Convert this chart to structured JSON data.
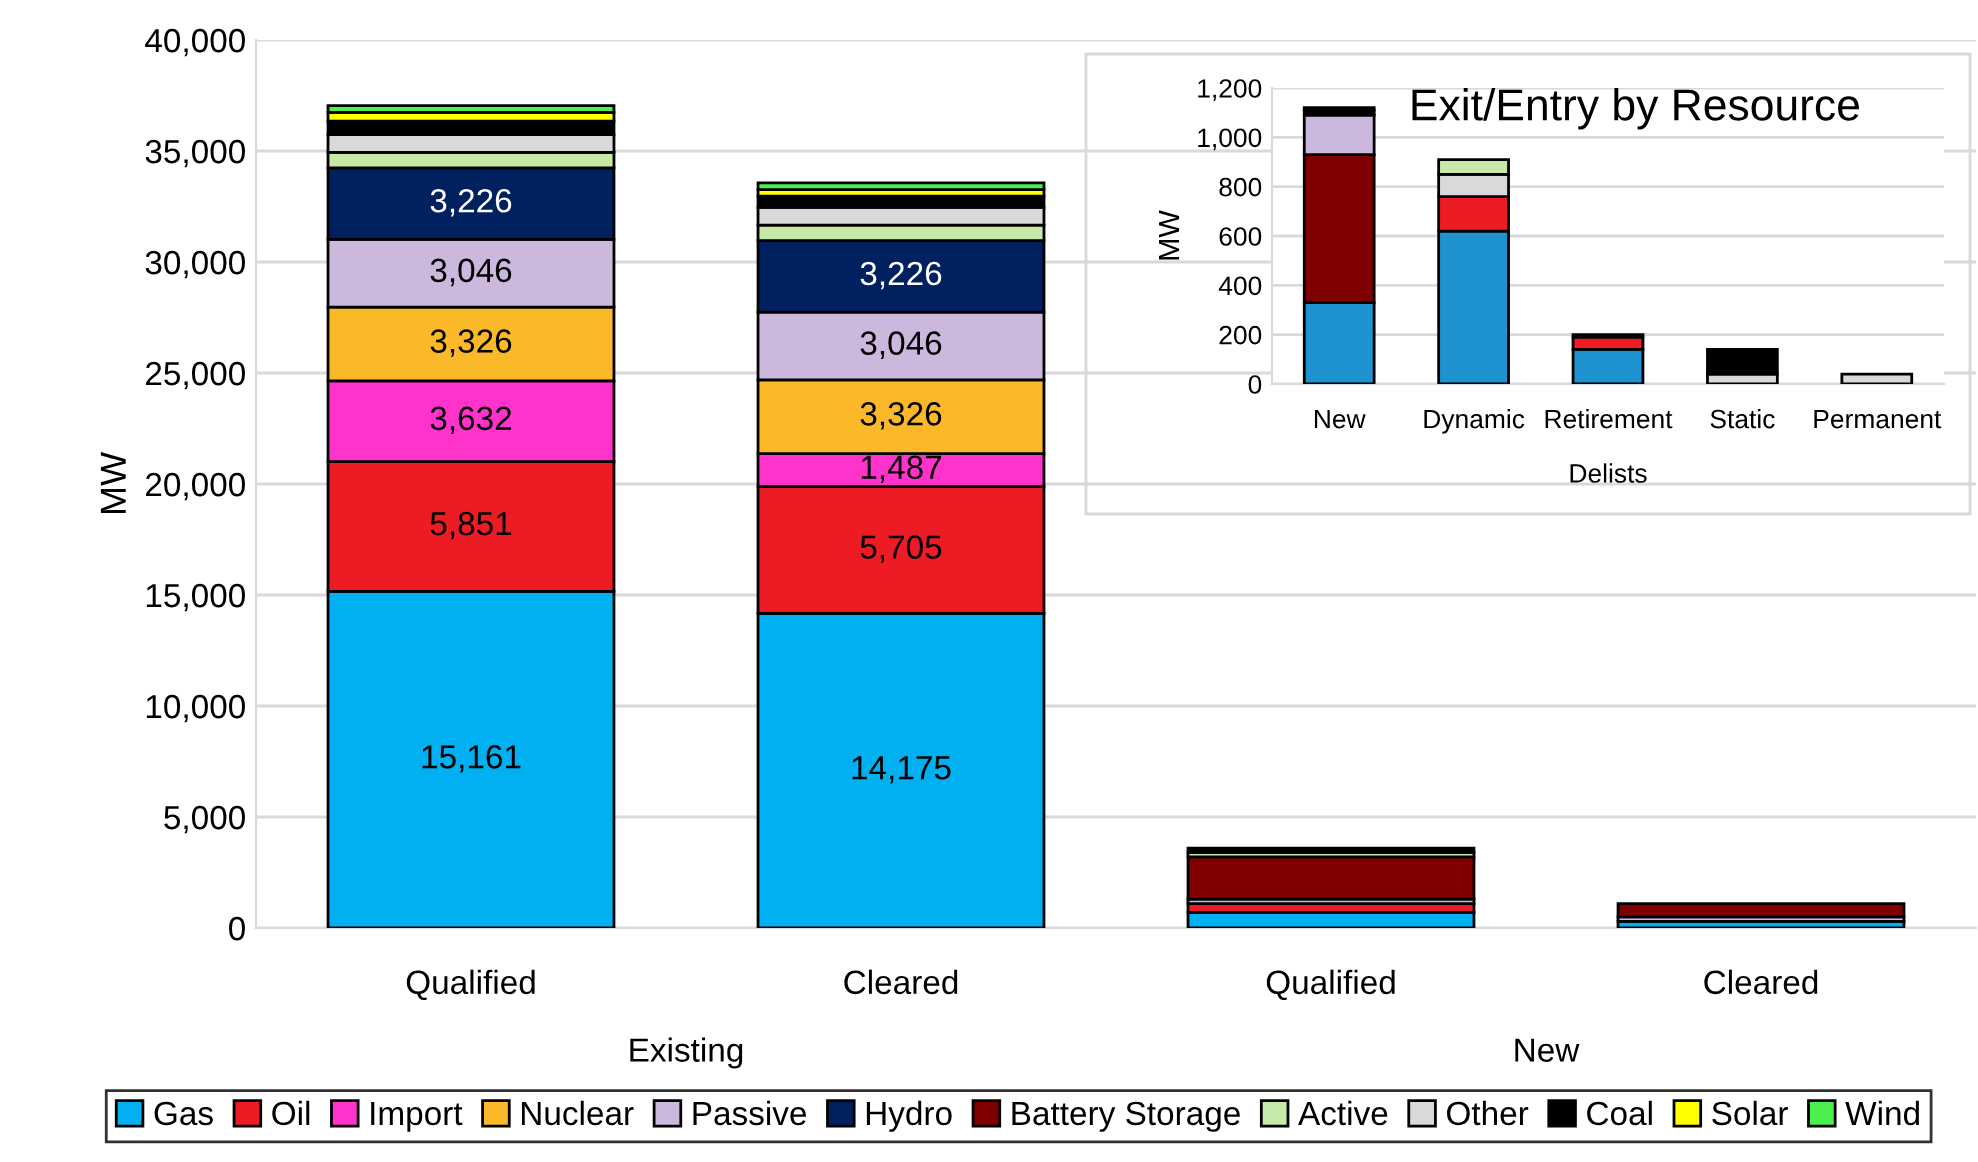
{
  "chart_data": [
    {
      "type": "bar",
      "stacked": true,
      "ylabel": "MW",
      "categories": [
        "Qualified",
        "Cleared",
        "Qualified",
        "Cleared"
      ],
      "annotations": [
        "Existing",
        "New"
      ],
      "ylim": [
        0,
        40000
      ],
      "yticks": [
        {
          "value": 0,
          "label": "0"
        },
        {
          "value": 5000,
          "label": "5,000"
        },
        {
          "value": 10000,
          "label": "10,000"
        },
        {
          "value": 15000,
          "label": "15,000"
        },
        {
          "value": 20000,
          "label": "20,000"
        },
        {
          "value": 25000,
          "label": "25,000"
        },
        {
          "value": 30000,
          "label": "30,000"
        },
        {
          "value": 35000,
          "label": "35,000"
        },
        {
          "value": 40000,
          "label": "40,000"
        }
      ],
      "grid": "y",
      "legend": "bottom",
      "series": [
        {
          "name": "Gas",
          "color": "#00b0f0",
          "values": [
            15161,
            14175,
            700,
            300
          ],
          "value_labels": [
            "15,161",
            "14,175",
            null,
            null
          ]
        },
        {
          "name": "Oil",
          "color": "#ed1c24",
          "values": [
            5851,
            5705,
            400,
            null
          ],
          "value_labels": [
            "5,851",
            "5,705",
            null,
            null
          ]
        },
        {
          "name": "Import",
          "color": "#ff33cc",
          "values": [
            3632,
            1487,
            null,
            null
          ],
          "value_labels": [
            "3,632",
            "1,487",
            null,
            null
          ]
        },
        {
          "name": "Nuclear",
          "color": "#fbb829",
          "values": [
            3326,
            3326,
            null,
            null
          ],
          "value_labels": [
            "3,326",
            "3,326",
            null,
            null
          ]
        },
        {
          "name": "Passive",
          "color": "#ccb8dc",
          "values": [
            3046,
            3046,
            200,
            200
          ],
          "value_labels": [
            "3,046",
            "3,046",
            null,
            null
          ]
        },
        {
          "name": "Hydro",
          "color": "#002060",
          "values": [
            3226,
            3226,
            null,
            null
          ],
          "value_labels": [
            "3,226",
            "3,226",
            null,
            null
          ]
        },
        {
          "name": "Battery Storage",
          "color": "#7f0000",
          "values": [
            null,
            null,
            1900,
            600
          ]
        },
        {
          "name": "Active",
          "color": "#c6e8a8",
          "values": [
            700,
            700,
            200,
            null
          ]
        },
        {
          "name": "Other",
          "color": "#d9d9d9",
          "values": [
            800,
            800,
            null,
            null
          ]
        },
        {
          "name": "Coal",
          "color": "#000000",
          "values": [
            600,
            500,
            200,
            null
          ]
        },
        {
          "name": "Solar",
          "color": "#ffff00",
          "values": [
            400,
            300,
            null,
            null
          ]
        },
        {
          "name": "Wind",
          "color": "#4cf04c",
          "values": [
            300,
            300,
            null,
            null
          ]
        }
      ]
    },
    {
      "type": "bar",
      "stacked": true,
      "title": "Exit/Entry by Resource",
      "ylabel": "MW",
      "categories": [
        "New",
        "Dynamic",
        "Retirement",
        "Static",
        "Permanent"
      ],
      "annotations": [
        "Delists"
      ],
      "ylim": [
        0,
        1200
      ],
      "yticks": [
        {
          "value": 0,
          "label": "0"
        },
        {
          "value": 200,
          "label": "200"
        },
        {
          "value": 400,
          "label": "400"
        },
        {
          "value": 600,
          "label": "600"
        },
        {
          "value": 800,
          "label": "800"
        },
        {
          "value": 1000,
          "label": "1,000"
        },
        {
          "value": 1200,
          "label": "1,200"
        }
      ],
      "grid": "y",
      "series": [
        {
          "color": "#1f92d0",
          "values": [
            330,
            620,
            140,
            null,
            null
          ]
        },
        {
          "color": "#ed1c24",
          "values": [
            null,
            140,
            50,
            null,
            null
          ]
        },
        {
          "color": "#002060",
          "values": [
            null,
            null,
            10,
            null,
            null
          ]
        },
        {
          "color": "#7f0000",
          "values": [
            600,
            null,
            null,
            null,
            null
          ]
        },
        {
          "color": "#ccb8dc",
          "values": [
            160,
            null,
            null,
            null,
            null
          ]
        },
        {
          "color": "#d9d9d9",
          "values": [
            null,
            90,
            null,
            40,
            40
          ]
        },
        {
          "color": "#c6e8a8",
          "values": [
            null,
            60,
            null,
            null,
            null
          ]
        },
        {
          "color": "#000000",
          "values": [
            20,
            null,
            null,
            100,
            null
          ]
        },
        {
          "color": "#ffff00",
          "values": [
            10,
            null,
            null,
            null,
            null
          ]
        }
      ]
    }
  ]
}
